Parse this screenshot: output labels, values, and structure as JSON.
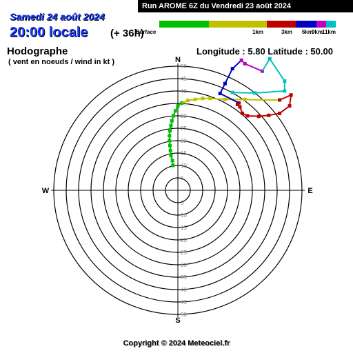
{
  "header": {
    "date": "Samedi 24 août 2024",
    "time": "20:00 locale",
    "offset": "(+ 36h)",
    "run": "Run AROME 6Z du Vendredi 23 août 2024"
  },
  "title": "Hodographe",
  "subtitle": "( vent en noeuds / wind in kt )",
  "coords": "Longitude : 5.80  Latitude : 50.00",
  "copyright": "Copyright © 2024 Meteociel.fr",
  "legend": [
    {
      "label": "Surface",
      "color": "#00c000"
    },
    {
      "label": "1km",
      "color": "#c0c000"
    },
    {
      "label": "3km",
      "color": "#c00000"
    },
    {
      "label": "6km",
      "color": "#0000c0"
    },
    {
      "label": "9km",
      "color": "#c000c0"
    },
    {
      "label": "11km",
      "color": "#00c0c0"
    }
  ],
  "chart_data": {
    "type": "line",
    "cardinals": [
      "N",
      "E",
      "S",
      "W"
    ],
    "rings": [
      5,
      10,
      15,
      20,
      25,
      30,
      35,
      40,
      45,
      50
    ],
    "units": "kt",
    "series": [
      {
        "name": "Surface",
        "color": "#00c000",
        "u": [
          -2.0,
          -2.2,
          -2.8,
          -3.0,
          -3.2,
          -3.4,
          -3.4,
          -3.2,
          -2.8,
          -2.4,
          -1.8,
          -1.0,
          0.0,
          1.6
        ],
        "v": [
          10.0,
          12.0,
          14.0,
          16.0,
          18.0,
          20.0,
          22.0,
          24.0,
          26.0,
          28.0,
          30.0,
          32.0,
          34.0,
          35.2
        ]
      },
      {
        "name": "1km",
        "color": "#c0c000",
        "u": [
          1.6,
          4.0,
          7.0,
          10.0,
          13.0,
          19.0,
          27.0,
          33.0,
          41.0
        ],
        "v": [
          35.2,
          36.2,
          36.6,
          37.0,
          37.0,
          36.6,
          36.6,
          36.4,
          36.4
        ],
        "markers": [
          1,
          2,
          3,
          4,
          5,
          6
        ]
      },
      {
        "name": "3km",
        "color": "#c00000",
        "u": [
          41.0,
          45.6,
          45.0,
          41.0,
          36.6,
          32.6,
          28.0,
          26.0,
          25.0,
          24.0,
          24.6
        ],
        "v": [
          36.4,
          38.4,
          34.0,
          31.0,
          30.2,
          29.8,
          30.0,
          31.0,
          33.6,
          34.6,
          35.2
        ]
      },
      {
        "name": "6km",
        "color": "#0000c0",
        "u": [
          24.6,
          21.0,
          17.0,
          19.0,
          22.0,
          25.6
        ],
        "v": [
          35.2,
          37.0,
          39.0,
          43.0,
          49.0,
          52.4
        ],
        "markers": [
          2,
          3,
          4
        ]
      },
      {
        "name": "9km",
        "color": "#c000c0",
        "u": [
          25.6,
          27.0,
          34.0
        ],
        "v": [
          52.4,
          51.0,
          48.0
        ]
      },
      {
        "name": "11km",
        "color": "#00c0c0",
        "u": [
          34.0,
          37.0,
          43.0,
          43.0,
          31.0,
          22.0
        ],
        "v": [
          48.0,
          53.0,
          44.0,
          40.0,
          39.2,
          39.4
        ],
        "markers": [
          1,
          2,
          3,
          4,
          5
        ]
      }
    ]
  }
}
